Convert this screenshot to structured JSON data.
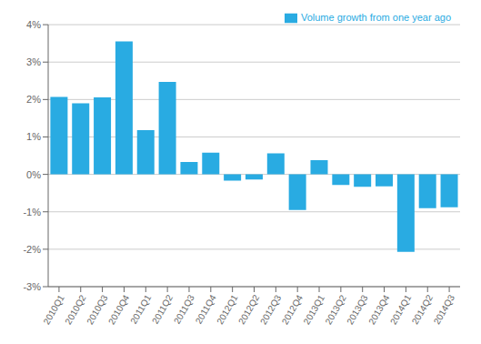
{
  "chart_data": {
    "type": "bar",
    "categories": [
      "2010Q1",
      "2010Q2",
      "2010Q3",
      "2010Q4",
      "2011Q1",
      "2011Q2",
      "2011Q3",
      "2011Q4",
      "2012Q1",
      "2012Q2",
      "2012Q3",
      "2012Q4",
      "2013Q1",
      "2013Q2",
      "2013Q3",
      "2013Q4",
      "2014Q1",
      "2014Q2",
      "2014Q3"
    ],
    "series": [
      {
        "name": "Volume growth from one year ago",
        "color": "#29abe2",
        "values": [
          2.07,
          1.9,
          2.06,
          3.55,
          1.18,
          2.47,
          0.33,
          0.58,
          -0.17,
          -0.14,
          0.56,
          -0.95,
          0.38,
          -0.28,
          -0.33,
          -0.32,
          -2.07,
          -0.9,
          -0.88
        ]
      }
    ],
    "ylim": [
      -3.0,
      4.0
    ],
    "yticks": [
      {
        "value": -3,
        "label": "-3%"
      },
      {
        "value": -2,
        "label": "-2%"
      },
      {
        "value": -1,
        "label": "-1%"
      },
      {
        "value": 0,
        "label": "0%"
      },
      {
        "value": 1,
        "label": "1%"
      },
      {
        "value": 2,
        "label": "2%"
      },
      {
        "value": 3,
        "label": "3%"
      },
      {
        "value": 4,
        "label": "4%"
      }
    ],
    "grid": true,
    "legend": "upper right"
  }
}
